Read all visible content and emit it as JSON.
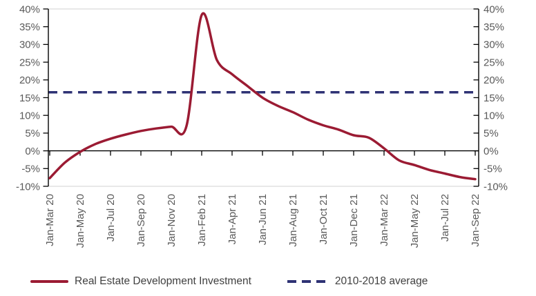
{
  "chart_data": {
    "type": "line",
    "title": "",
    "x_axis": {
      "tick_labels": [
        "Jan-Mar 20",
        "Jan-May 20",
        "Jan-Jul 20",
        "Jan-Sep 20",
        "Jan-Nov 20",
        "Jan-Feb 21",
        "Jan-Apr 21",
        "Jan-Jun 21",
        "Jan-Aug 21",
        "Jan-Oct 21",
        "Jan-Dec 21",
        "Jan-Mar 22",
        "Jan-May 22",
        "Jan-Jul 22",
        "Jan-Sep 22"
      ],
      "points_per_tick": 2,
      "label_rotation_deg": -90
    },
    "y_axis": {
      "min": -10,
      "max": 40,
      "step": 5,
      "tick_labels": [
        "40%",
        "35%",
        "30%",
        "25%",
        "20%",
        "15%",
        "10%",
        "5%",
        "0%",
        "-5%",
        "-10%"
      ],
      "mirrored_right_axis": true,
      "zero_baseline": true
    },
    "grid": "off",
    "legend_position": "bottom",
    "series": [
      {
        "name": "Real Estate Development Investment",
        "type": "smooth-line",
        "color": "#9B1B33",
        "values": [
          -7.7,
          -3.3,
          -0.3,
          1.9,
          3.4,
          4.6,
          5.6,
          6.3,
          6.8,
          7.0,
          38.3,
          25.6,
          21.6,
          18.3,
          15.0,
          12.7,
          10.9,
          8.8,
          7.2,
          6.0,
          4.4,
          3.7,
          0.7,
          -2.7,
          -4.0,
          -5.4,
          -6.4,
          -7.4,
          -8.0
        ]
      },
      {
        "name": "2010-2018 average",
        "type": "constant-dashed-line",
        "color": "#2E3274",
        "value": 16.5
      }
    ]
  },
  "colors": {
    "investment_line": "#9B1B33",
    "average_line": "#2E3274",
    "axis_line": "#000000",
    "plot_border": "#D9D9D9",
    "tick_text": "#595959",
    "legend_text": "#404040"
  }
}
